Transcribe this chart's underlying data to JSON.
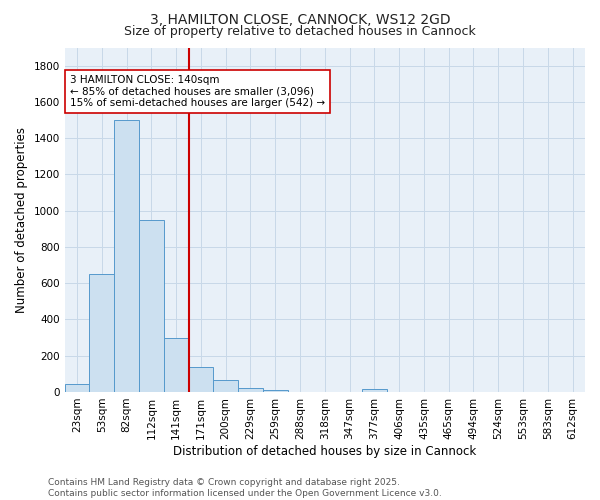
{
  "title_line1": "3, HAMILTON CLOSE, CANNOCK, WS12 2GD",
  "title_line2": "Size of property relative to detached houses in Cannock",
  "xlabel": "Distribution of detached houses by size in Cannock",
  "ylabel": "Number of detached properties",
  "categories": [
    "23sqm",
    "53sqm",
    "82sqm",
    "112sqm",
    "141sqm",
    "171sqm",
    "200sqm",
    "229sqm",
    "259sqm",
    "288sqm",
    "318sqm",
    "347sqm",
    "377sqm",
    "406sqm",
    "435sqm",
    "465sqm",
    "494sqm",
    "524sqm",
    "553sqm",
    "583sqm",
    "612sqm"
  ],
  "values": [
    45,
    650,
    1500,
    950,
    300,
    135,
    65,
    22,
    12,
    0,
    0,
    0,
    15,
    0,
    0,
    0,
    0,
    0,
    0,
    0,
    0
  ],
  "bar_color": "#cce0f0",
  "bar_edge_color": "#5599cc",
  "vline_color": "#cc0000",
  "vline_pos": 4.5,
  "annotation_text": "3 HAMILTON CLOSE: 140sqm\n← 85% of detached houses are smaller (3,096)\n15% of semi-detached houses are larger (542) →",
  "annotation_box_color": "#ffffff",
  "annotation_box_edge": "#cc0000",
  "ylim": [
    0,
    1900
  ],
  "yticks": [
    0,
    200,
    400,
    600,
    800,
    1000,
    1200,
    1400,
    1600,
    1800
  ],
  "grid_color": "#c8d8e8",
  "bg_color": "#e8f0f8",
  "footer_line1": "Contains HM Land Registry data © Crown copyright and database right 2025.",
  "footer_line2": "Contains public sector information licensed under the Open Government Licence v3.0.",
  "title_fontsize": 10,
  "subtitle_fontsize": 9,
  "axis_label_fontsize": 8.5,
  "tick_fontsize": 7.5,
  "annotation_fontsize": 7.5,
  "footer_fontsize": 6.5
}
